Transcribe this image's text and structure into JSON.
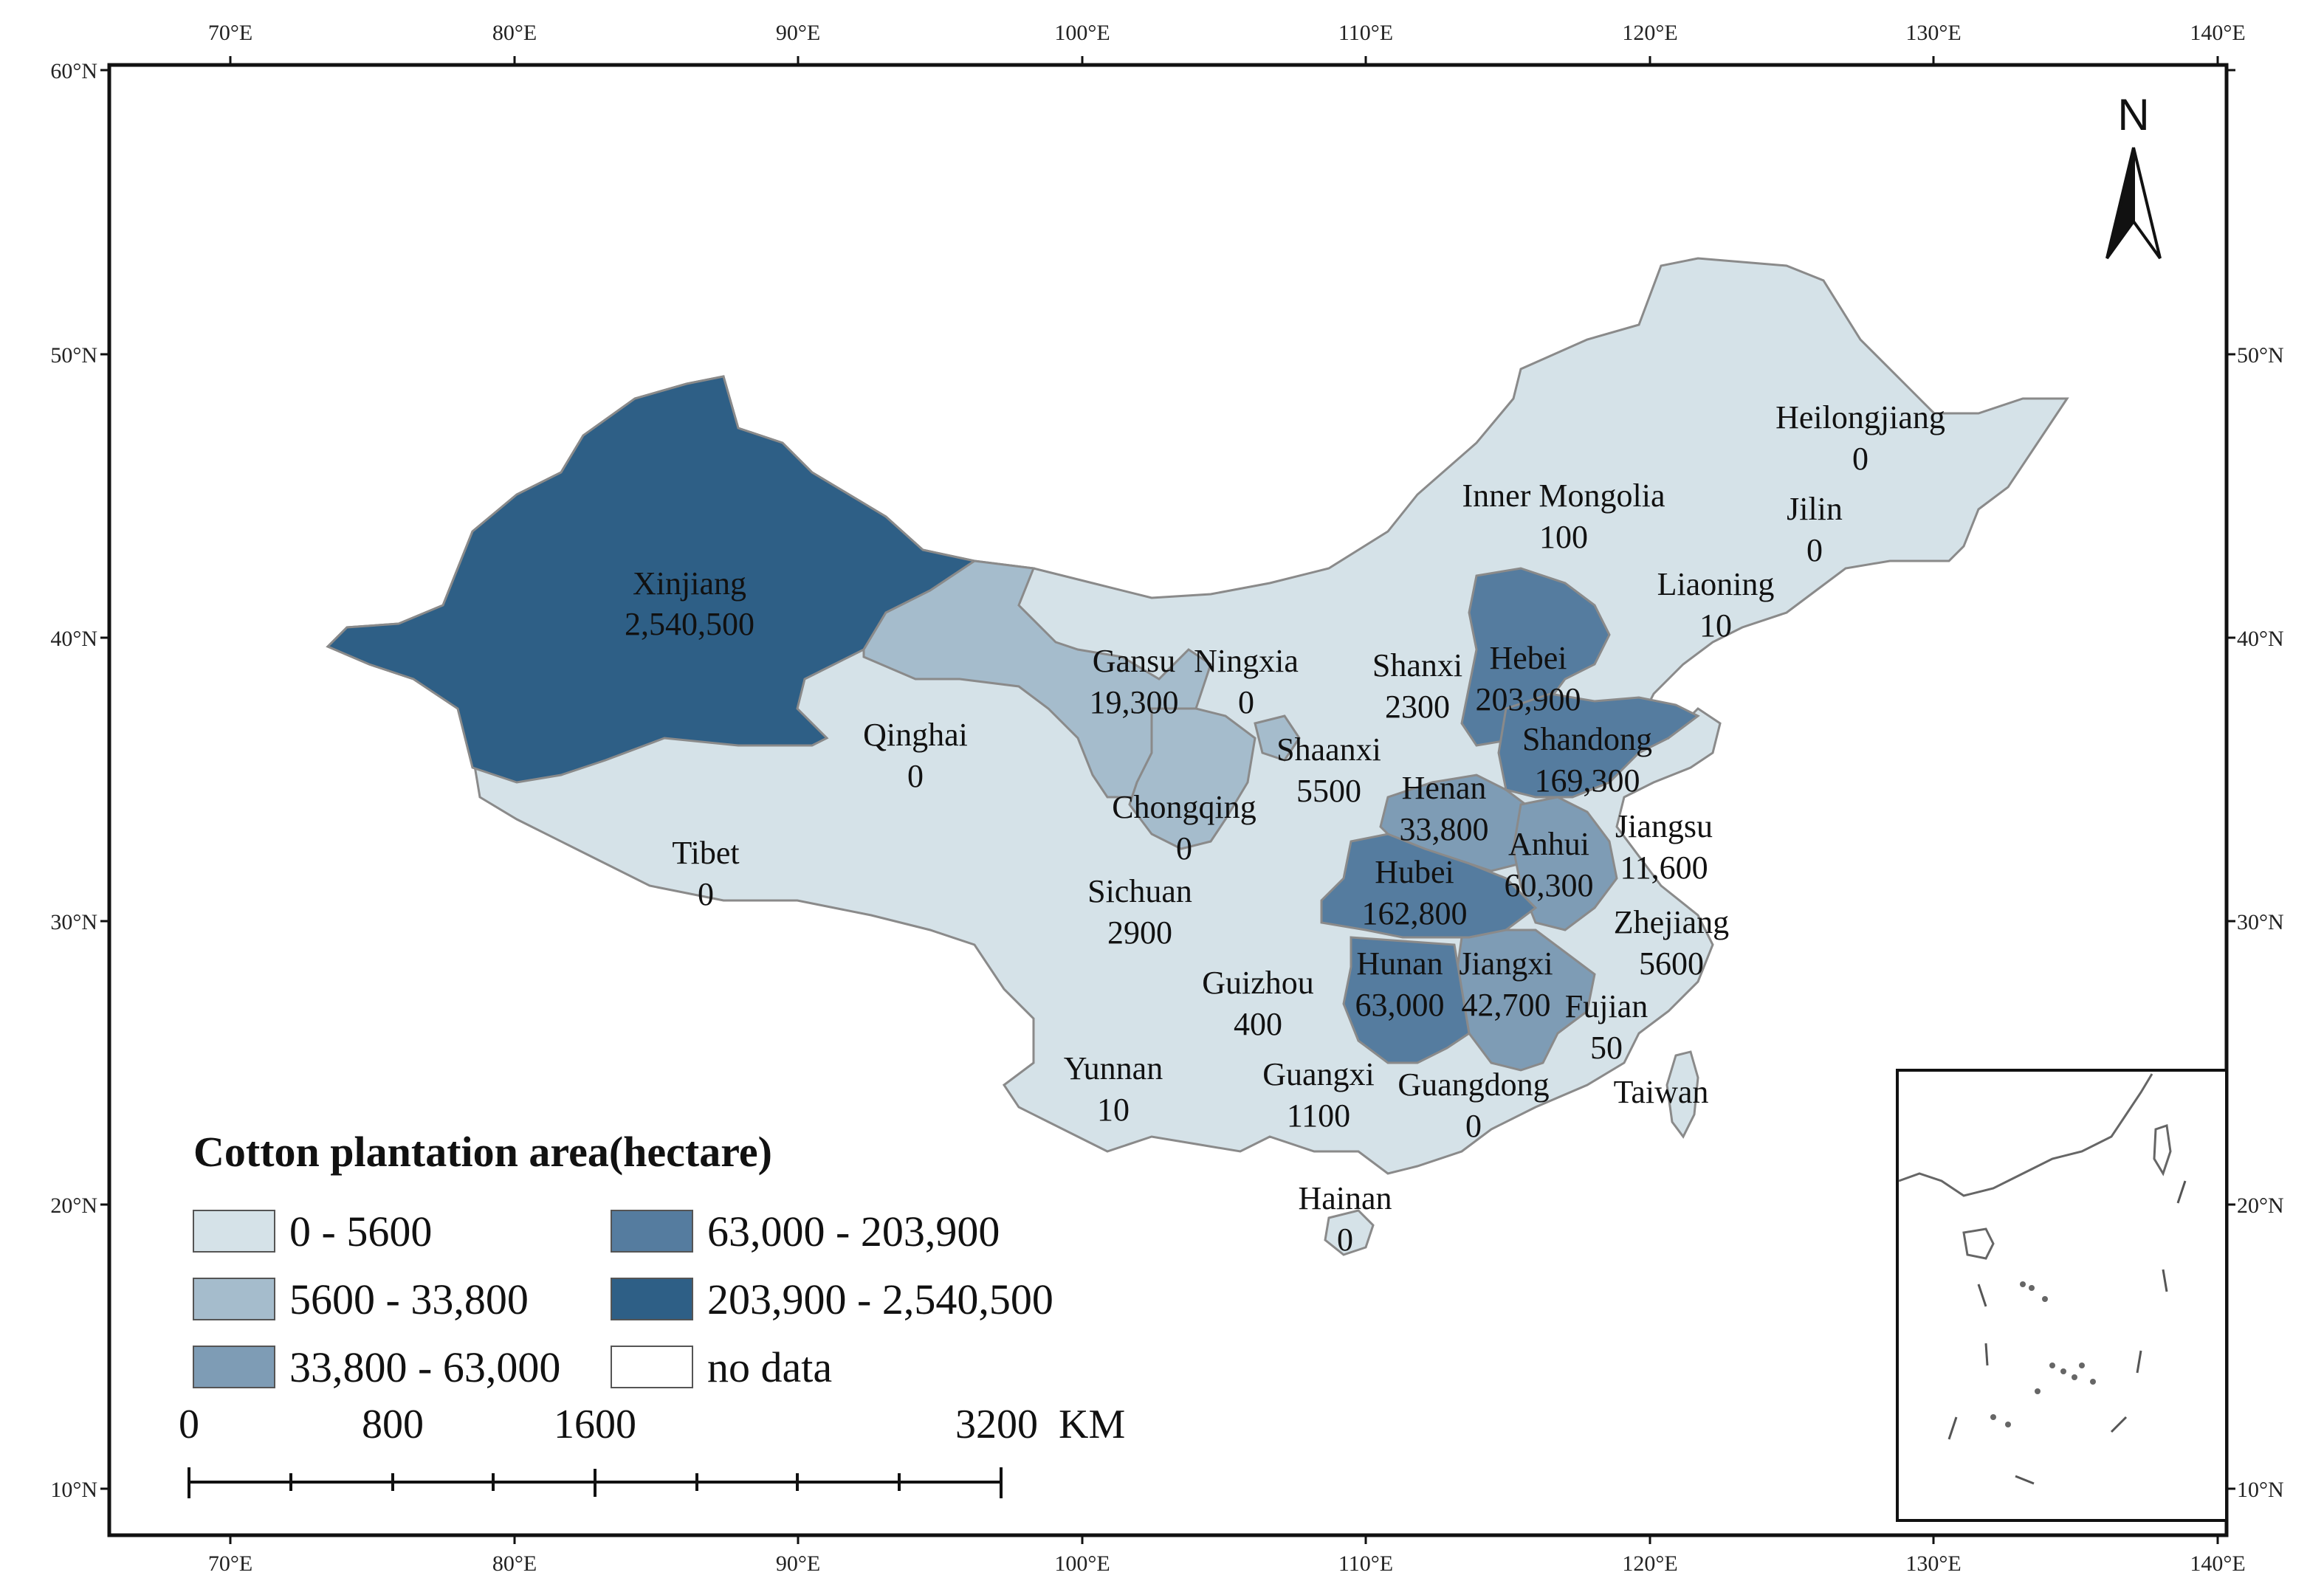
{
  "map": {
    "legend_title": "Cotton plantation area(hectare)",
    "legend": [
      {
        "label": "0 - 5600",
        "color": "#d5e2e8"
      },
      {
        "label": "5600 - 33,800",
        "color": "#a5bccc"
      },
      {
        "label": "33,800 - 63,000",
        "color": "#7e9cb5"
      },
      {
        "label": "63,000 - 203,900",
        "color": "#557c9f"
      },
      {
        "label": "203,900 - 2,540,500",
        "color": "#2e5f86"
      },
      {
        "label": "no data",
        "color": "#ffffff"
      }
    ],
    "longitude_ticks": [
      "70°E",
      "80°E",
      "90°E",
      "100°E",
      "110°E",
      "120°E",
      "130°E",
      "140°E"
    ],
    "latitude_ticks": [
      "60°N",
      "50°N",
      "40°N",
      "30°N",
      "20°N",
      "10°N"
    ],
    "north_arrow": {
      "label": "N",
      "icon": "north-arrow-icon"
    },
    "scale_bar": {
      "labels": [
        "0",
        "800",
        "1600",
        "3200"
      ],
      "unit": "KM"
    },
    "provinces": [
      {
        "name": "Xinjiang",
        "value": "2,540,500"
      },
      {
        "name": "Tibet",
        "value": "0"
      },
      {
        "name": "Qinghai",
        "value": "0"
      },
      {
        "name": "Gansu",
        "value": "19,300"
      },
      {
        "name": "Ningxia",
        "value": "0"
      },
      {
        "name": "Inner Mongolia",
        "value": "100"
      },
      {
        "name": "Heilongjiang",
        "value": "0"
      },
      {
        "name": "Jilin",
        "value": "0"
      },
      {
        "name": "Liaoning",
        "value": "10"
      },
      {
        "name": "Hebei",
        "value": "203,900"
      },
      {
        "name": "Shanxi",
        "value": "2300"
      },
      {
        "name": "Shandong",
        "value": "169,300"
      },
      {
        "name": "Shaanxi",
        "value": "5500"
      },
      {
        "name": "Henan",
        "value": "33,800"
      },
      {
        "name": "Chongqing",
        "value": "0"
      },
      {
        "name": "Sichuan",
        "value": "2900"
      },
      {
        "name": "Jiangsu",
        "value": "11,600"
      },
      {
        "name": "Anhui",
        "value": "60,300"
      },
      {
        "name": "Hubei",
        "value": "162,800"
      },
      {
        "name": "Zhejiang",
        "value": "5600"
      },
      {
        "name": "Hunan",
        "value": "63,000"
      },
      {
        "name": "Jiangxi",
        "value": "42,700"
      },
      {
        "name": "Fujian",
        "value": "50"
      },
      {
        "name": "Guizhou",
        "value": "400"
      },
      {
        "name": "Yunnan",
        "value": "10"
      },
      {
        "name": "Guangxi",
        "value": "1100"
      },
      {
        "name": "Guangdong",
        "value": "0"
      },
      {
        "name": "Taiwan",
        "value": ""
      },
      {
        "name": "Hainan",
        "value": "0"
      }
    ]
  }
}
